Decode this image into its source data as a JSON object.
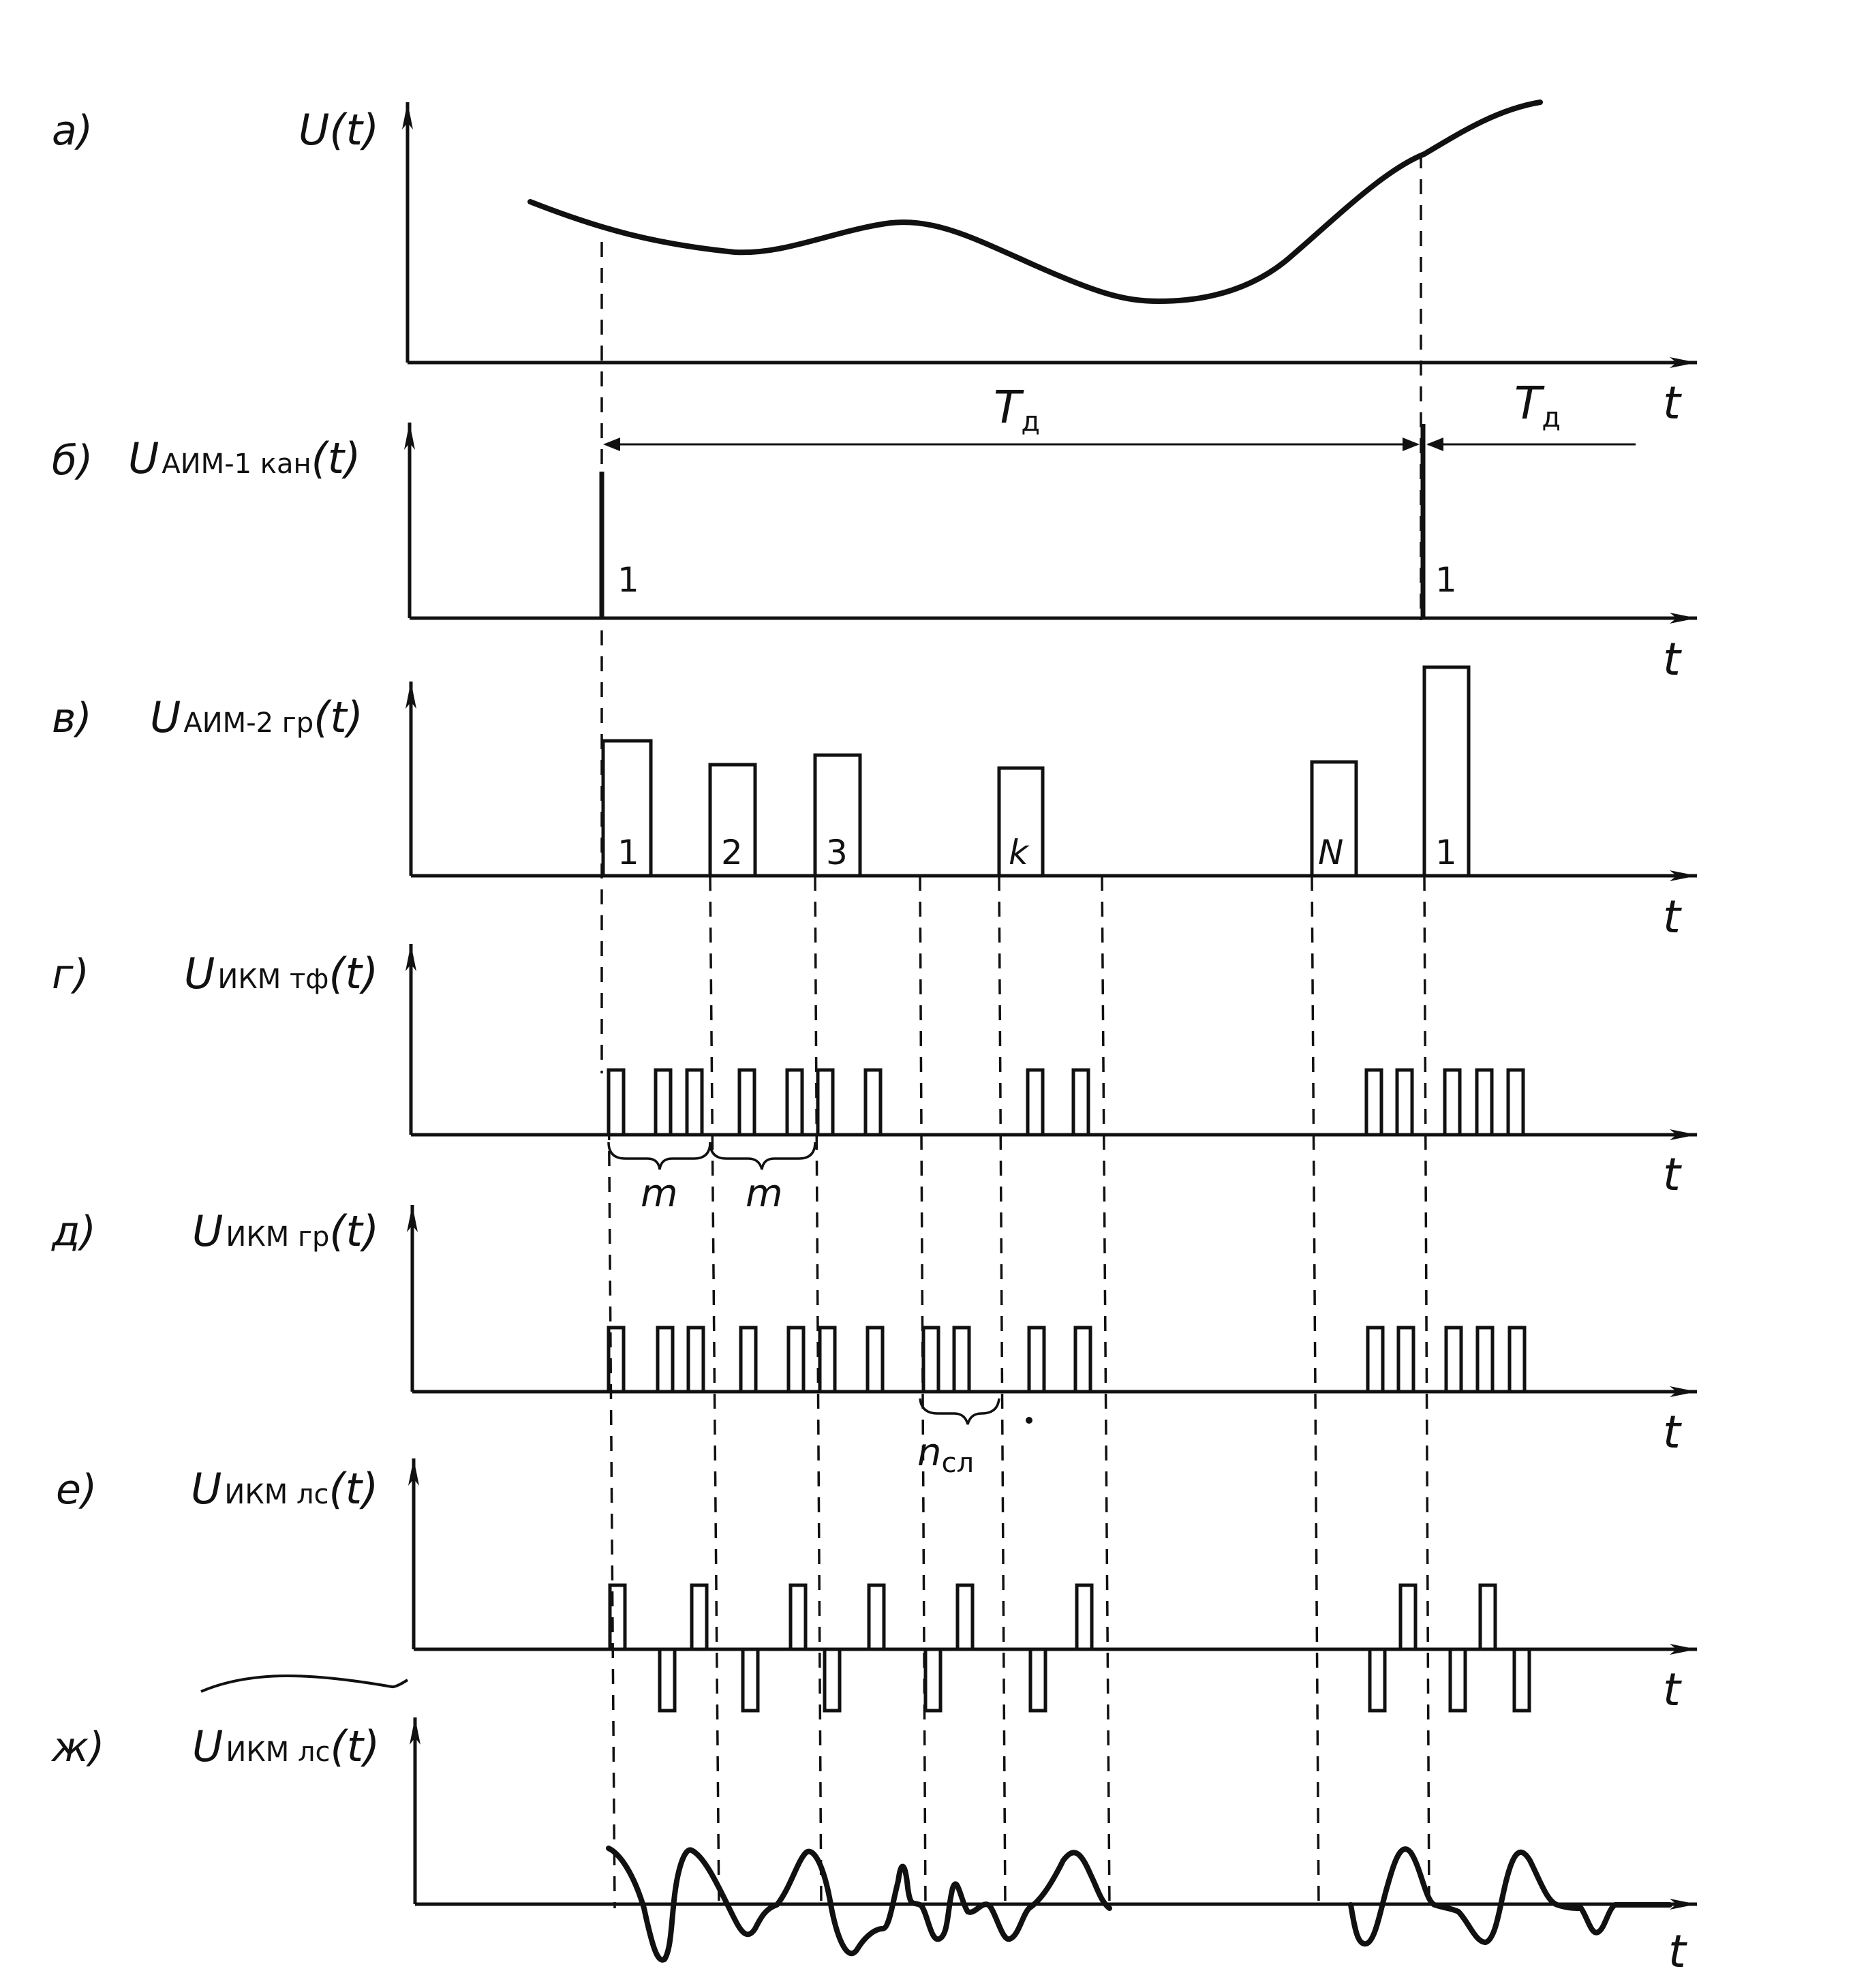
{
  "rows": [
    {
      "letter": "а)",
      "sig": "U",
      "sub": "",
      "arg": "(t)"
    },
    {
      "letter": "б)",
      "sig": "U",
      "sub": "АИМ-1 кан",
      "arg": "(t)"
    },
    {
      "letter": "в)",
      "sig": "U",
      "sub": "АИМ-2 гр",
      "arg": "(t)"
    },
    {
      "letter": "г)",
      "sig": "U",
      "sub": "ИКМ тф",
      "arg": "(t)"
    },
    {
      "letter": "д)",
      "sig": "U",
      "sub": "ИКМ гр",
      "arg": "(t)"
    },
    {
      "letter": "е)",
      "sig": "U",
      "sub": "ИКМ лс",
      "arg": "(t)"
    },
    {
      "letter": "ж)",
      "sig": "U",
      "sub": "ИКМ лс",
      "arg": "(t)"
    }
  ],
  "axis_label": "t",
  "period": {
    "main": "T",
    "sub": "д"
  },
  "pam1_labels": [
    "1",
    "1"
  ],
  "pam2_labels": [
    "1",
    "2",
    "3",
    "k",
    "N",
    "1"
  ],
  "brace_labels": {
    "m1": "m",
    "m2": "m",
    "nsl_main": "n",
    "nsl_sub": "сл"
  }
}
